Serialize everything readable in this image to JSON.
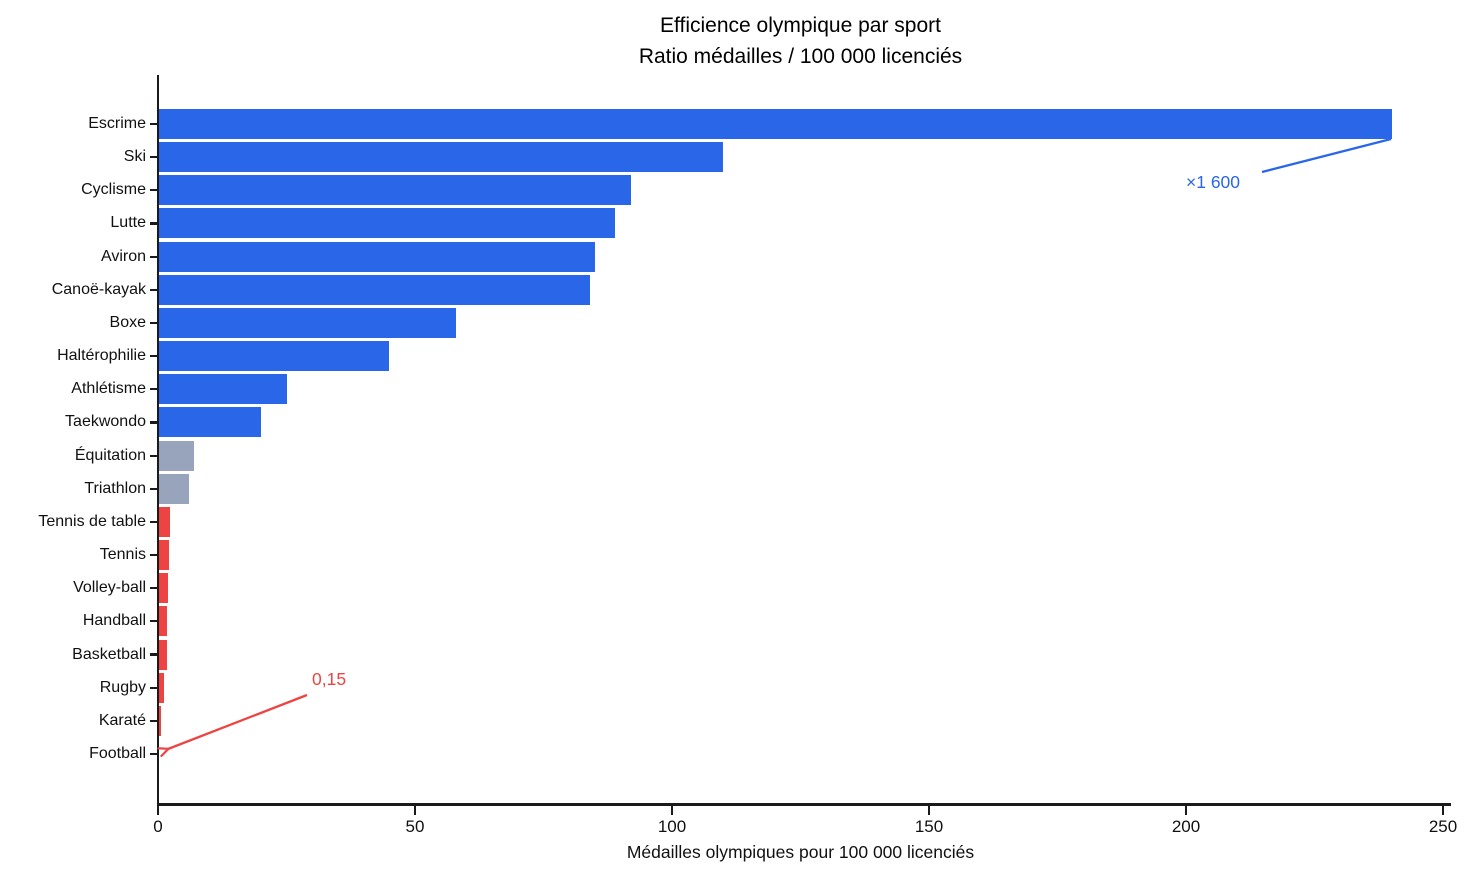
{
  "title": {
    "line1": "Efficience olympique par sport",
    "line2": "Ratio médailles / 100 000 licenciés"
  },
  "colors": {
    "blue": "#2a66e8",
    "gray": "#97a4bb",
    "red": "#ee4343",
    "axis": "#1a1a1a",
    "background": "#ffffff"
  },
  "chart_data": {
    "type": "bar",
    "orientation": "horizontal",
    "title": "Efficience olympique par sport",
    "subtitle": "Ratio médailles / 100 000 licenciés",
    "xlabel": "Médailles olympiques pour 100 000 licenciés",
    "ylabel": "",
    "xlim": [
      0,
      250
    ],
    "xticks": [
      0,
      50,
      100,
      150,
      200,
      250
    ],
    "grid": false,
    "legend": null,
    "categories": [
      "Escrime",
      "Ski",
      "Cyclisme",
      "Lutte",
      "Aviron",
      "Canoë-kayak",
      "Boxe",
      "Haltérophilie",
      "Athlétisme",
      "Taekwondo",
      "Équitation",
      "Triathlon",
      "Tennis de table",
      "Tennis",
      "Volley-ball",
      "Handball",
      "Basketball",
      "Rugby",
      "Karaté",
      "Football"
    ],
    "values": [
      240,
      110,
      92,
      89,
      85,
      84,
      58,
      45,
      25,
      20,
      7,
      6,
      2.3,
      2.1,
      1.9,
      1.8,
      1.7,
      1.2,
      0.6,
      0.15
    ],
    "bar_colors": [
      "blue",
      "blue",
      "blue",
      "blue",
      "blue",
      "blue",
      "blue",
      "blue",
      "blue",
      "blue",
      "gray",
      "gray",
      "red",
      "red",
      "red",
      "red",
      "red",
      "red",
      "red",
      "red"
    ],
    "annotations": [
      {
        "text": "×1 600",
        "color_key": "blue",
        "points_to": "Escrime"
      },
      {
        "text": "0,15",
        "color_key": "red",
        "points_to": "Football"
      }
    ]
  }
}
